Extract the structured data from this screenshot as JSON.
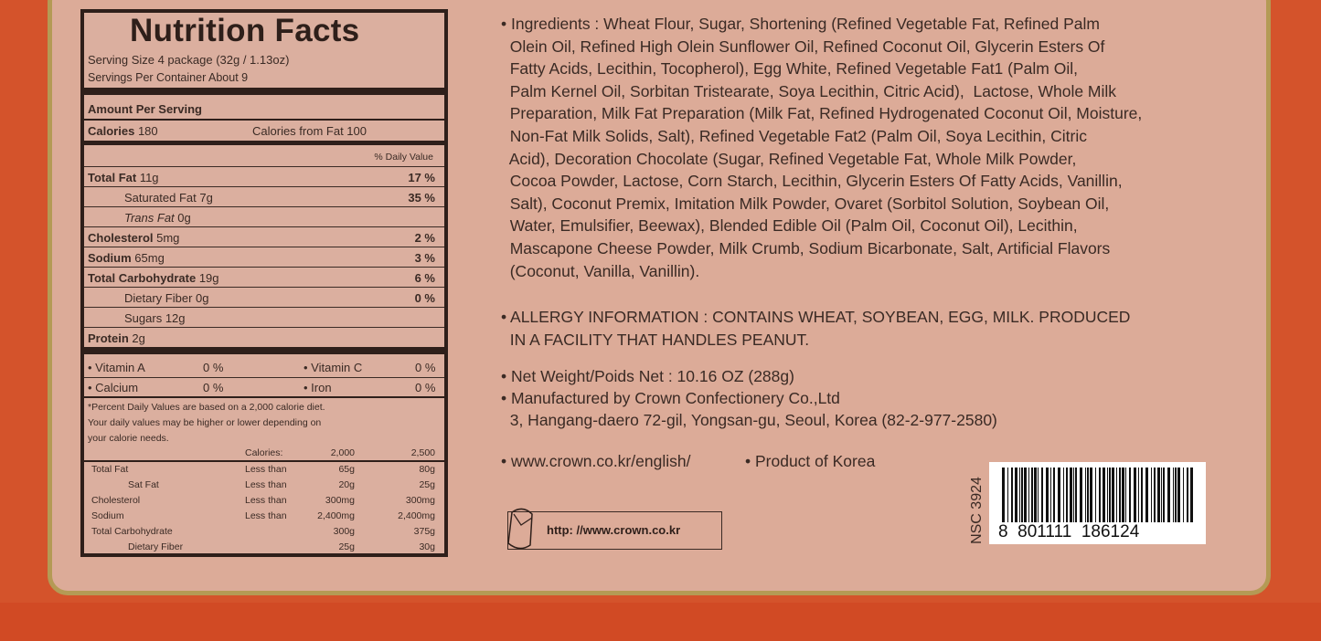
{
  "nutrition": {
    "title": "Nutrition Facts",
    "serving_size": "Serving Size 4 package (32g / 1.13oz)",
    "servings_per_container": "Servings Per Container About 9",
    "amount_per_serving": "Amount Per Serving",
    "calories_label": "Calories",
    "calories_value": "180",
    "calories_from_fat": "Calories from Fat  100",
    "daily_value_header": "% Daily Value",
    "nutrients": [
      {
        "label": "Total Fat",
        "amount": "11g",
        "pct": "17 %",
        "bold": true,
        "indent": false
      },
      {
        "label": "Saturated Fat",
        "amount": "7g",
        "pct": "35 %",
        "bold": false,
        "indent": true
      },
      {
        "label": "Trans Fat",
        "amount": "0g",
        "pct": "",
        "bold": false,
        "indent": true,
        "italic": true
      },
      {
        "label": "Cholesterol",
        "amount": "5mg",
        "pct": "2 %",
        "bold": true,
        "indent": false
      },
      {
        "label": "Sodium",
        "amount": "65mg",
        "pct": "3 %",
        "bold": true,
        "indent": false
      },
      {
        "label": "Total Carbohydrate",
        "amount": "19g",
        "pct": "6 %",
        "bold": true,
        "indent": false
      },
      {
        "label": "Dietary Fiber",
        "amount": "0g",
        "pct": "0 %",
        "bold": false,
        "indent": true
      },
      {
        "label": "Sugars",
        "amount": "12g",
        "pct": "",
        "bold": false,
        "indent": true
      },
      {
        "label": "Protein",
        "amount": "2g",
        "pct": "",
        "bold": true,
        "indent": false
      }
    ],
    "vitamins": [
      {
        "left": "• Vitamin A",
        "left_pct": "0 %",
        "right": "• Vitamin C",
        "right_pct": "0 %"
      },
      {
        "left": "• Calcium",
        "left_pct": "0 %",
        "right": "• Iron",
        "right_pct": "0 %"
      }
    ],
    "footnote": [
      "*Percent Daily Values are based on a 2,000 calorie diet.",
      "Your daily values may be higher or lower depending on",
      "your calorie needs."
    ],
    "reference_header": [
      "",
      "Calories:",
      "2,000",
      "2,500"
    ],
    "reference_rows": [
      [
        "Total Fat",
        "Less than",
        "65g",
        "80g"
      ],
      [
        "Sat Fat",
        "Less than",
        "20g",
        "25g"
      ],
      [
        "Cholesterol",
        "Less than",
        "300mg",
        "300mg"
      ],
      [
        "Sodium",
        "Less than",
        "2,400mg",
        "2,400mg"
      ],
      [
        "Total Carbohydrate",
        "",
        "300g",
        "375g"
      ],
      [
        "Dietary Fiber",
        "",
        "25g",
        "30g"
      ]
    ]
  },
  "ingredients_lines": [
    "• Ingredients : Wheat Flour, Sugar, Shortening (Refined Vegetable Fat, Refined Palm",
    "  Olein Oil, Refined High Olein Sunflower Oil, Refined Coconut Oil, Glycerin Esters Of",
    "  Fatty Acids, Lecithin, Tocopherol), Egg White, Refined Vegetable Fat1 (Palm Oil,",
    "  Palm Kernel Oil, Sorbitan Tristearate, Soya Lecithin, Citric Acid),  Lactose, Whole Milk",
    "  Preparation, Milk Fat Preparation (Milk Fat, Refined Hydrogenated Coconut Oil, Moisture,",
    "  Non-Fat Milk Solids, Salt), Refined Vegetable Fat2 (Palm Oil, Soya Lecithin, Citric",
    "  Acid), Decoration Chocolate (Sugar, Refined Vegetable Fat, Whole Milk Powder,",
    "  Cocoa Powder, Lactose, Corn Starch, Lecithin, Glycerin Esters Of Fatty Acids, Vanillin,",
    "  Salt), Coconut Premix, Imitation Milk Powder, Ovaret (Sorbitol Solution, Soybean Oil,",
    "  Water, Emulsifier, Beewax), Blended Edible Oil (Palm Oil, Coconut Oil), Lecithin,",
    "  Mascapone Cheese Powder, Milk Crumb, Sodium Bicarbonate, Salt, Artificial Flavors",
    "  (Coconut, Vanilla, Vanillin)."
  ],
  "allergy_lines": [
    "• ALLERGY INFORMATION : CONTAINS WHEAT, SOYBEAN, EGG, MILK. PRODUCED",
    "  IN A FACILITY THAT HANDLES PEANUT."
  ],
  "net_weight": "• Net Weight/Poids Net : 10.16 OZ (288g)",
  "manufacturer": "• Manufactured by Crown Confectionery Co.,Ltd",
  "address": "  3, Hangang-daero 72-gil, Yongsan-gu, Seoul, Korea (82-2-977-2580)",
  "website": "• www.crown.co.kr/english/",
  "origin": "• Product of Korea",
  "url_box": "http: //www.crown.co.kr",
  "nsc": "NSC  3924",
  "barcode_number": "8  801111  186124",
  "colors": {
    "background": "#d4532b",
    "panel": "#dcab98",
    "border": "#b49a55",
    "text": "#3a2a24"
  }
}
